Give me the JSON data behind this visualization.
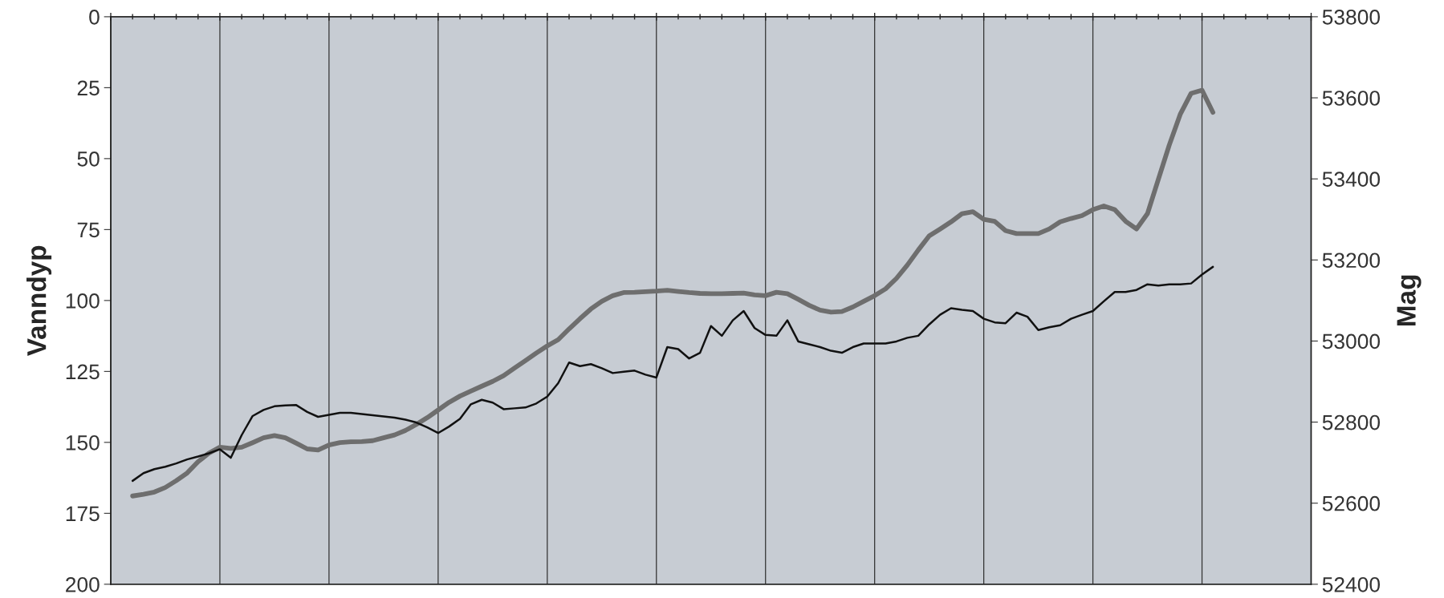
{
  "chart_data": {
    "type": "line",
    "ylabel": "Vanndyp",
    "y2label": "Mag",
    "categories": [
      null,
      null,
      null,
      null,
      null,
      null,
      null,
      null,
      null,
      null,
      null,
      null,
      null,
      null,
      null,
      null,
      null,
      null,
      null,
      null,
      null,
      null,
      null,
      null,
      null,
      null,
      null,
      null,
      null,
      null,
      null,
      null,
      null,
      null,
      null,
      null,
      null,
      null,
      null,
      null,
      null,
      null,
      null,
      null,
      null,
      null,
      null,
      null,
      null,
      null,
      null,
      null,
      null,
      null,
      null,
      null,
      null,
      null,
      null,
      null,
      null,
      null,
      null,
      null,
      null,
      null,
      null,
      null,
      null,
      null,
      null,
      null,
      null,
      null,
      null,
      null,
      null,
      null,
      null,
      null,
      null,
      null,
      null,
      null,
      null,
      null,
      null,
      null,
      null,
      null,
      null,
      null,
      null,
      null,
      null,
      null,
      null,
      null,
      null,
      null,
      null,
      null,
      null,
      null,
      null,
      null,
      null,
      null,
      null,
      null,
      null
    ],
    "series": [
      {
        "color": "#6e6e6e",
        "values": [
          null,
          null,
          168.9,
          168.3,
          167.5,
          165.9,
          163.5,
          160.8,
          156.8,
          153.8,
          151.7,
          152.1,
          151.7,
          150.1,
          148.4,
          147.6,
          148.4,
          150.3,
          152.3,
          152.7,
          150.9,
          150.1,
          149.8,
          149.7,
          149.4,
          148.4,
          147.4,
          145.8,
          143.7,
          141.3,
          138.6,
          135.9,
          133.7,
          131.9,
          130.2,
          128.5,
          126.5,
          123.8,
          121.2,
          118.5,
          116.0,
          113.8,
          110.0,
          106.4,
          103.0,
          100.3,
          98.3,
          97.2,
          97.1,
          96.9,
          96.7,
          96.4,
          96.8,
          97.2,
          97.5,
          97.6,
          97.6,
          97.5,
          97.4,
          98.0,
          98.3,
          97.1,
          97.6,
          99.6,
          101.7,
          103.4,
          104.1,
          103.9,
          102.3,
          100.3,
          98.3,
          95.9,
          92.2,
          87.5,
          82.2,
          77.2,
          74.8,
          72.3,
          69.4,
          68.7,
          71.4,
          72.1,
          75.4,
          76.4,
          76.4,
          76.4,
          74.8,
          72.3,
          71.1,
          70.1,
          68.0,
          66.7,
          68.0,
          72.1,
          74.8,
          69.4,
          57.3,
          45.2,
          34.4,
          27.0,
          25.9,
          33.7,
          null,
          null,
          null,
          null,
          null,
          null,
          null,
          null,
          null
        ]
      },
      {
        "color": "#111111",
        "axis": "y2",
        "values": [
          null,
          null,
          52655,
          52674,
          52684,
          52690,
          52698,
          52708,
          52715,
          52723,
          52733,
          52712,
          52768,
          52815,
          52830,
          52839,
          52841,
          52842,
          52825,
          52813,
          52818,
          52823,
          52823,
          52820,
          52817,
          52814,
          52811,
          52806,
          52799,
          52787,
          52773,
          52789,
          52808,
          52844,
          52855,
          52848,
          52832,
          52834,
          52836,
          52846,
          52863,
          52896,
          52947,
          52938,
          52943,
          52933,
          52921,
          52924,
          52927,
          52917,
          52910,
          52985,
          52980,
          52957,
          52971,
          53037,
          53013,
          53051,
          53074,
          53032,
          53015,
          53013,
          53051,
          52999,
          52992,
          52985,
          52976,
          52971,
          52985,
          52994,
          52994,
          52994,
          52999,
          53008,
          53013,
          53041,
          53065,
          53081,
          53077,
          53074,
          53055,
          53046,
          53044,
          53070,
          53060,
          53027,
          53034,
          53039,
          53055,
          53065,
          53074,
          53098,
          53121,
          53121,
          53126,
          53140,
          53137,
          53140,
          53140,
          53142,
          53164,
          53183,
          null,
          null,
          null,
          null,
          null,
          null,
          null,
          null,
          null
        ]
      }
    ],
    "ylim": [
      200,
      0
    ],
    "yticks": [
      0,
      25,
      50,
      75,
      100,
      125,
      150,
      175,
      200
    ],
    "y2lim": [
      52400,
      53800
    ],
    "y2ticks": [
      52400,
      52600,
      52800,
      53000,
      53200,
      53400,
      53600,
      53800
    ],
    "grid": "x",
    "tick_labels": "y"
  }
}
